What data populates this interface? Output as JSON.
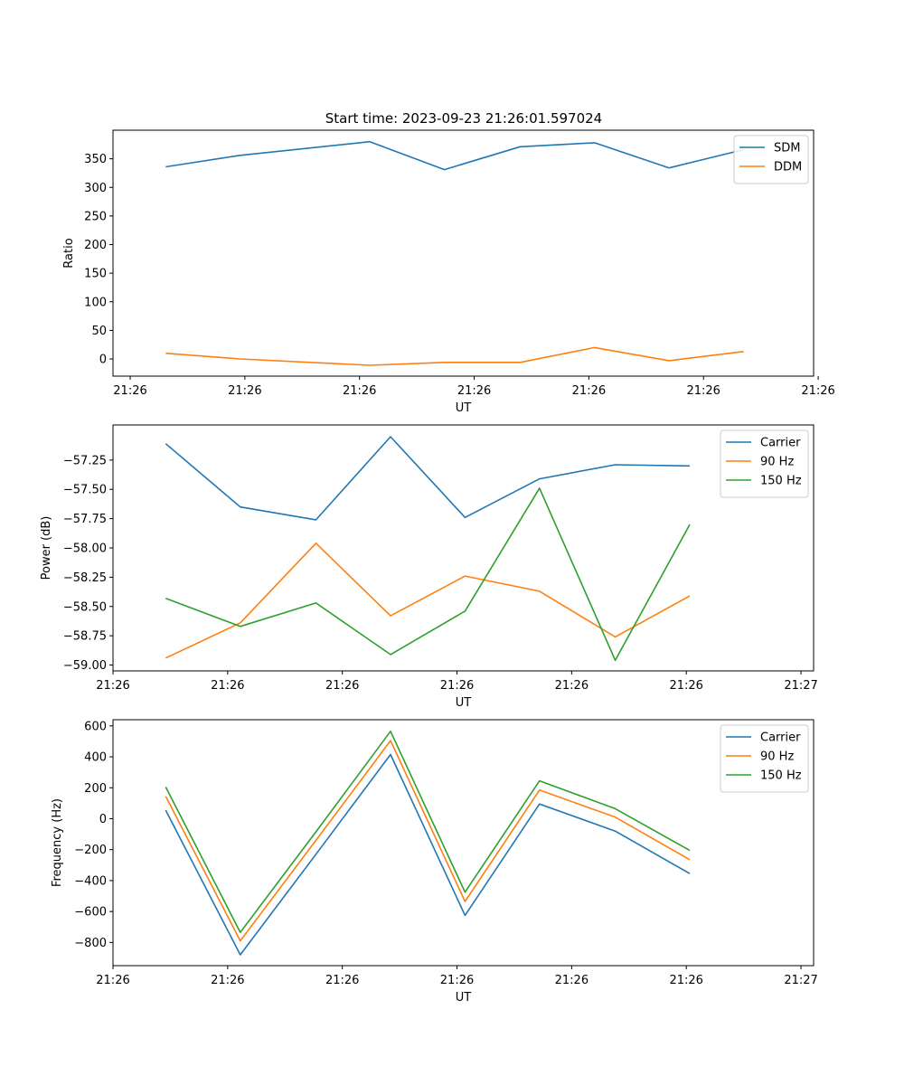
{
  "figure_title": "Start time: 2023-09-23 21:26:01.597024",
  "colors": {
    "blue": "#1f77b4",
    "orange": "#ff7f0e",
    "green": "#2ca02c"
  },
  "chart_data": [
    {
      "type": "line",
      "title": "Start time: 2023-09-23 21:26:01.597024",
      "xlabel": "UT",
      "ylabel": "Ratio",
      "xlim": [
        -0.46,
        5.65
      ],
      "ylim": [
        -30,
        400
      ],
      "x": [
        0,
        0.65,
        1.78,
        2.43,
        3.09,
        3.74,
        4.39,
        5.04
      ],
      "xticks": [
        -0.31,
        0.69,
        1.69,
        2.69,
        3.69,
        4.69,
        5.69
      ],
      "xtick_labels": [
        "21:26",
        "21:26",
        "21:26",
        "21:26",
        "21:26",
        "21:26",
        "21:26"
      ],
      "yticks": [
        0,
        50,
        100,
        150,
        200,
        250,
        300,
        350
      ],
      "ytick_labels": [
        "0",
        "50",
        "100",
        "150",
        "200",
        "250",
        "300",
        "350"
      ],
      "legend_position": "top-right",
      "series": [
        {
          "name": "SDM",
          "color": "#1f77b4",
          "values": [
            336,
            356,
            380,
            331,
            371,
            378,
            334,
            366
          ]
        },
        {
          "name": "DDM",
          "color": "#ff7f0e",
          "values": [
            10,
            0,
            -11,
            -6,
            -6,
            20,
            -3,
            13
          ]
        }
      ]
    },
    {
      "type": "line",
      "title": "",
      "xlabel": "UT",
      "ylabel": "Power (dB)",
      "xlim": [
        -0.46,
        5.65
      ],
      "ylim": [
        -59.05,
        -56.95
      ],
      "x": [
        0,
        0.65,
        1.31,
        1.96,
        2.61,
        3.26,
        3.92,
        4.57
      ],
      "xticks": [
        -0.46,
        0.54,
        1.54,
        2.54,
        3.54,
        4.54,
        5.54
      ],
      "xtick_labels": [
        "21:26",
        "21:26",
        "21:26",
        "21:26",
        "21:26",
        "21:26",
        "21:27"
      ],
      "yticks": [
        -59.0,
        -58.75,
        -58.5,
        -58.25,
        -58.0,
        -57.75,
        -57.5,
        -57.25
      ],
      "ytick_labels": [
        "−59.00",
        "−58.75",
        "−58.50",
        "−58.25",
        "−58.00",
        "−57.75",
        "−57.50",
        "−57.25"
      ],
      "legend_position": "top-right",
      "series": [
        {
          "name": "Carrier",
          "color": "#1f77b4",
          "values": [
            -57.11,
            -57.65,
            -57.76,
            -57.05,
            -57.74,
            -57.41,
            -57.29,
            -57.3
          ]
        },
        {
          "name": "90 Hz",
          "color": "#ff7f0e",
          "values": [
            -58.94,
            -58.64,
            -57.96,
            -58.58,
            -58.24,
            -58.37,
            -58.76,
            -58.41
          ]
        },
        {
          "name": "150 Hz",
          "color": "#2ca02c",
          "values": [
            -58.43,
            -58.67,
            -58.47,
            -58.91,
            -58.54,
            -57.49,
            -58.96,
            -57.8
          ]
        }
      ]
    },
    {
      "type": "line",
      "title": "",
      "xlabel": "UT",
      "ylabel": "Frequency (Hz)",
      "xlim": [
        -0.46,
        5.65
      ],
      "ylim": [
        -950,
        640
      ],
      "x": [
        0,
        0.65,
        1.31,
        1.96,
        2.61,
        3.26,
        3.92,
        4.57
      ],
      "xticks": [
        -0.46,
        0.54,
        1.54,
        2.54,
        3.54,
        4.54,
        5.54
      ],
      "xtick_labels": [
        "21:26",
        "21:26",
        "21:26",
        "21:26",
        "21:26",
        "21:26",
        "21:27"
      ],
      "yticks": [
        -800,
        -600,
        -400,
        -200,
        0,
        200,
        400,
        600
      ],
      "ytick_labels": [
        "−800",
        "−600",
        "−400",
        "−200",
        "0",
        "200",
        "400",
        "600"
      ],
      "legend_position": "top-right",
      "series": [
        {
          "name": "Carrier",
          "color": "#1f77b4",
          "values": [
            55,
            -880,
            -230,
            415,
            -625,
            95,
            -80,
            -355
          ]
        },
        {
          "name": "90 Hz",
          "color": "#ff7f0e",
          "values": [
            145,
            -790,
            -140,
            505,
            -535,
            185,
            10,
            -265
          ]
        },
        {
          "name": "150 Hz",
          "color": "#2ca02c",
          "values": [
            205,
            -735,
            -85,
            565,
            -475,
            245,
            65,
            -205
          ]
        }
      ]
    }
  ]
}
